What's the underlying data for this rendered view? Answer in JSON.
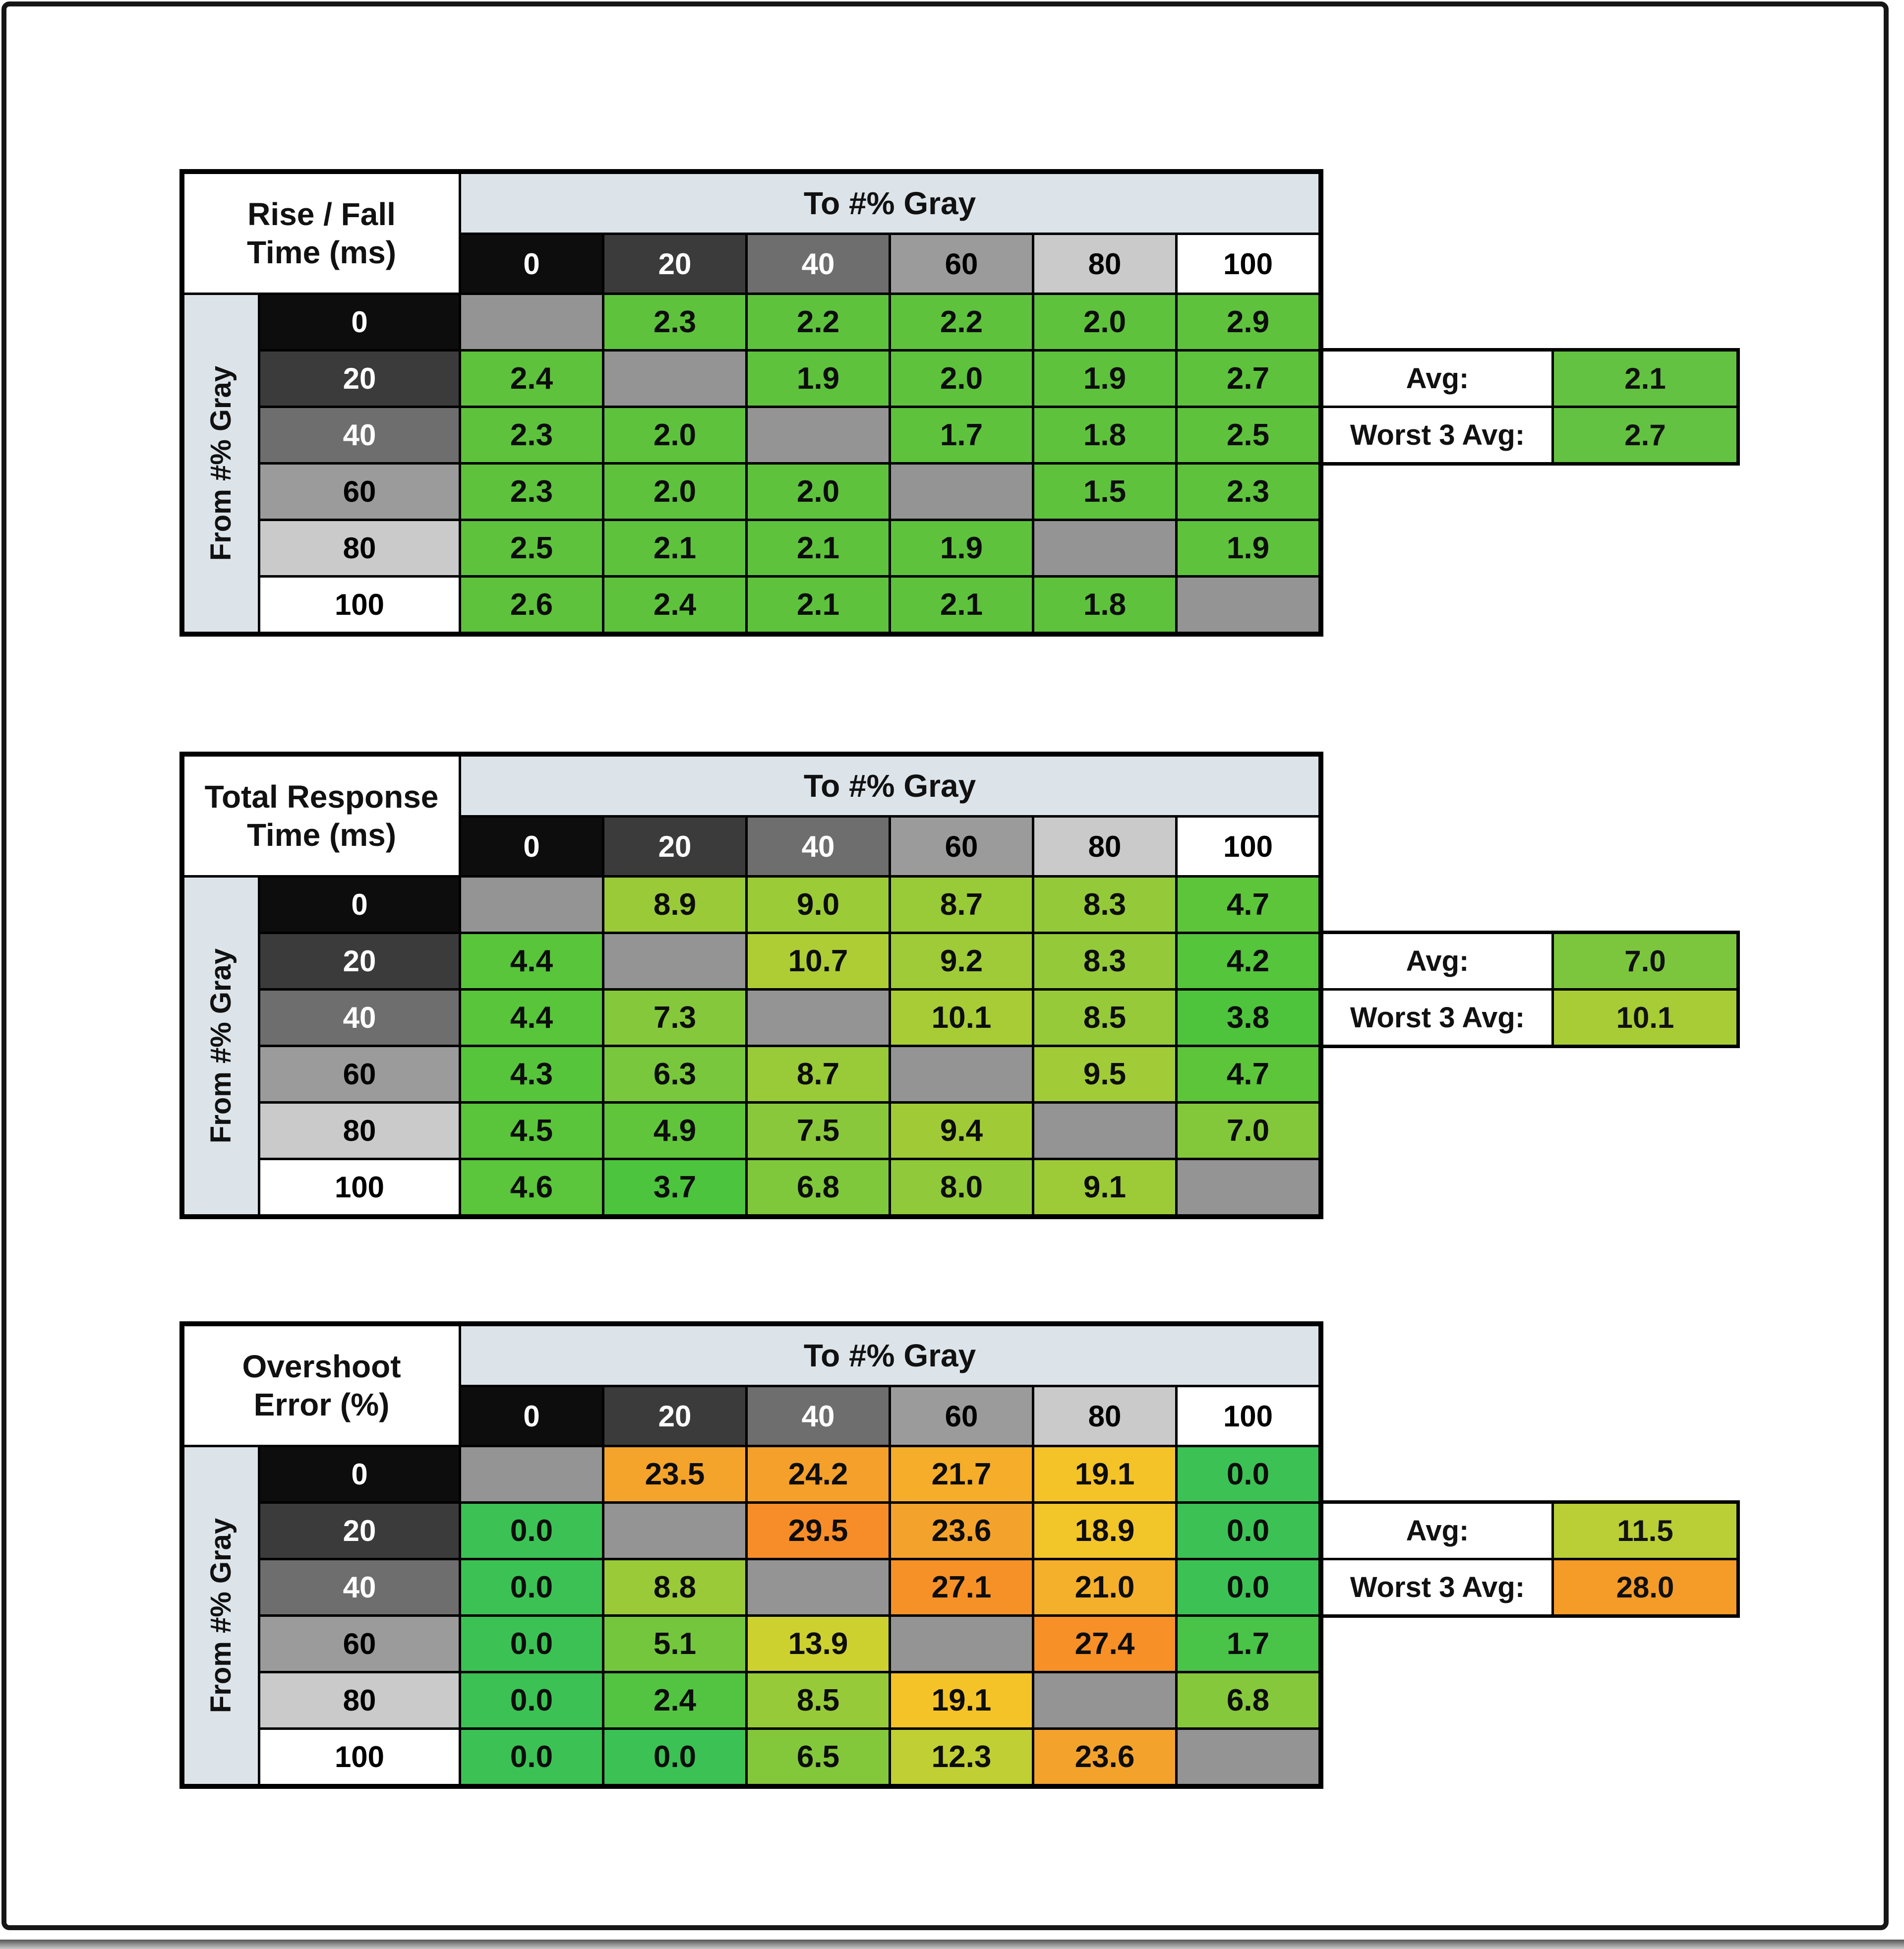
{
  "style": {
    "band_bg": "#dce4ea",
    "diagonal_bg": "#949494",
    "grid_color": "#000000",
    "frame_color": "#161616",
    "header_bg": [
      "#0d0d0d",
      "#3b3b3b",
      "#6e6e6e",
      "#9b9b9b",
      "#cacaca",
      "#ffffff"
    ],
    "header_fg": [
      "#ffffff",
      "#ffffff",
      "#ffffff",
      "#000000",
      "#000000",
      "#000000"
    ]
  },
  "chart_data": [
    {
      "type": "heatmap",
      "title_line1": "Rise / Fall",
      "title_line2": "Time (ms)",
      "col_group_label": "To #% Gray",
      "row_group_label": "From #% Gray",
      "columns": [
        "0",
        "20",
        "40",
        "60",
        "80",
        "100"
      ],
      "rows": [
        "0",
        "20",
        "40",
        "60",
        "80",
        "100"
      ],
      "values": [
        [
          "",
          "2.3",
          "2.2",
          "2.2",
          "2.0",
          "2.9"
        ],
        [
          "2.4",
          "",
          "1.9",
          "2.0",
          "1.9",
          "2.7"
        ],
        [
          "2.3",
          "2.0",
          "",
          "1.7",
          "1.8",
          "2.5"
        ],
        [
          "2.3",
          "2.0",
          "2.0",
          "",
          "1.5",
          "2.3"
        ],
        [
          "2.5",
          "2.1",
          "2.1",
          "1.9",
          "",
          "1.9"
        ],
        [
          "2.6",
          "2.4",
          "2.1",
          "2.1",
          "1.8",
          ""
        ]
      ],
      "colors": [
        [
          "#949494",
          "#5ec23d",
          "#5ec23d",
          "#5ec23d",
          "#5ec23d",
          "#5ec23d"
        ],
        [
          "#5ec23d",
          "#949494",
          "#5ec23d",
          "#5ec23d",
          "#5ec23d",
          "#5ec23d"
        ],
        [
          "#5ec23d",
          "#5ec23d",
          "#949494",
          "#5ec23d",
          "#5ec23d",
          "#5ec23d"
        ],
        [
          "#5ec23d",
          "#5ec23d",
          "#5ec23d",
          "#949494",
          "#5ec23d",
          "#5ec23d"
        ],
        [
          "#5ec23d",
          "#5ec23d",
          "#5ec23d",
          "#5ec23d",
          "#949494",
          "#5ec23d"
        ],
        [
          "#5ec23d",
          "#5ec23d",
          "#5ec23d",
          "#5ec23d",
          "#5ec23d",
          "#949494"
        ]
      ],
      "avg": {
        "label": "Avg:",
        "value": "2.1",
        "color": "#63c241"
      },
      "worst": {
        "label": "Worst 3 Avg:",
        "value": "2.7",
        "color": "#63c241"
      }
    },
    {
      "type": "heatmap",
      "title_line1": "Total Response",
      "title_line2": "Time (ms)",
      "col_group_label": "To #% Gray",
      "row_group_label": "From #% Gray",
      "columns": [
        "0",
        "20",
        "40",
        "60",
        "80",
        "100"
      ],
      "rows": [
        "0",
        "20",
        "40",
        "60",
        "80",
        "100"
      ],
      "values": [
        [
          "",
          "8.9",
          "9.0",
          "8.7",
          "8.3",
          "4.7"
        ],
        [
          "4.4",
          "",
          "10.7",
          "9.2",
          "8.3",
          "4.2"
        ],
        [
          "4.4",
          "7.3",
          "",
          "10.1",
          "8.5",
          "3.8"
        ],
        [
          "4.3",
          "6.3",
          "8.7",
          "",
          "9.5",
          "4.7"
        ],
        [
          "4.5",
          "4.9",
          "7.5",
          "9.4",
          "",
          "7.0"
        ],
        [
          "4.6",
          "3.7",
          "6.8",
          "8.0",
          "9.1",
          ""
        ]
      ],
      "colors": [
        [
          "#949494",
          "#9bca38",
          "#9ccb38",
          "#99ca38",
          "#94ca39",
          "#5dc53a"
        ],
        [
          "#58c53b",
          "#949494",
          "#aecd35",
          "#9ecb37",
          "#94ca39",
          "#55c53c"
        ],
        [
          "#58c53b",
          "#86c83c",
          "#949494",
          "#a8cc36",
          "#96ca39",
          "#4ec43d"
        ],
        [
          "#57c53b",
          "#79c73c",
          "#99ca38",
          "#949494",
          "#a1cb37",
          "#5dc53a"
        ],
        [
          "#5ac53b",
          "#60c53a",
          "#89c83b",
          "#a0cb37",
          "#949494",
          "#83c83b"
        ],
        [
          "#5bc53b",
          "#4cc43e",
          "#80c83b",
          "#90c93a",
          "#9dcb38",
          "#949494"
        ]
      ],
      "avg": {
        "label": "Avg:",
        "value": "7.0",
        "color": "#7cc63e"
      },
      "worst": {
        "label": "Worst 3 Avg:",
        "value": "10.1",
        "color": "#a8cc36"
      }
    },
    {
      "type": "heatmap",
      "title_line1": "Overshoot",
      "title_line2": "Error (%)",
      "col_group_label": "To #% Gray",
      "row_group_label": "From #% Gray",
      "columns": [
        "0",
        "20",
        "40",
        "60",
        "80",
        "100"
      ],
      "rows": [
        "0",
        "20",
        "40",
        "60",
        "80",
        "100"
      ],
      "values": [
        [
          "",
          "23.5",
          "24.2",
          "21.7",
          "19.1",
          "0.0"
        ],
        [
          "0.0",
          "",
          "29.5",
          "23.6",
          "18.9",
          "0.0"
        ],
        [
          "0.0",
          "8.8",
          "",
          "27.1",
          "21.0",
          "0.0"
        ],
        [
          "0.0",
          "5.1",
          "13.9",
          "",
          "27.4",
          "1.7"
        ],
        [
          "0.0",
          "2.4",
          "8.5",
          "19.1",
          "",
          "6.8"
        ],
        [
          "0.0",
          "0.0",
          "6.5",
          "12.3",
          "23.6",
          ""
        ]
      ],
      "colors": [
        [
          "#949494",
          "#f4a42b",
          "#f4a02b",
          "#f5ad2a",
          "#f4c328",
          "#3cc254"
        ],
        [
          "#3cc254",
          "#949494",
          "#f78d28",
          "#f3a32c",
          "#f2c529",
          "#3cc254"
        ],
        [
          "#3cc254",
          "#9aca38",
          "#949494",
          "#f69128",
          "#f4b02a",
          "#3cc254"
        ],
        [
          "#3cc254",
          "#74c73c",
          "#cdd130",
          "#949494",
          "#f69027",
          "#49c348"
        ],
        [
          "#3cc254",
          "#53c442",
          "#97ca39",
          "#f4c328",
          "#949494",
          "#86c83b"
        ],
        [
          "#3cc254",
          "#3cc254",
          "#83c83b",
          "#c0cf33",
          "#f3a32c",
          "#949494"
        ]
      ],
      "avg": {
        "label": "Avg:",
        "value": "11.5",
        "color": "#bace35"
      },
      "worst": {
        "label": "Worst 3 Avg:",
        "value": "28.0",
        "color": "#f49b28"
      }
    }
  ]
}
